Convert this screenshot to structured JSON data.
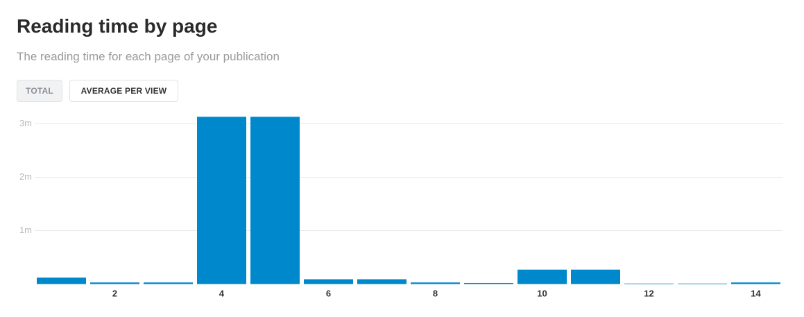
{
  "controls": [
    "TOTAL",
    "AVERAGE PER VIEW"
  ],
  "chart_data": {
    "type": "bar",
    "title": "Reading time by page",
    "subtitle": "The reading time for each page of your publication",
    "categories": [
      null,
      2,
      null,
      4,
      null,
      6,
      null,
      8,
      null,
      10,
      null,
      12,
      null,
      14
    ],
    "values": [
      0.12,
      0.03,
      0.03,
      3.13,
      3.13,
      0.09,
      0.09,
      0.03,
      0.02,
      0.27,
      0.27,
      0.01,
      0.01,
      0.03
    ],
    "color": "#0088cc",
    "ylim": [
      0,
      3.2
    ],
    "yticks": [
      {
        "value": 1,
        "label": "1m"
      },
      {
        "value": 2,
        "label": "2m"
      },
      {
        "value": 3,
        "label": "3m"
      }
    ],
    "grid": true
  }
}
